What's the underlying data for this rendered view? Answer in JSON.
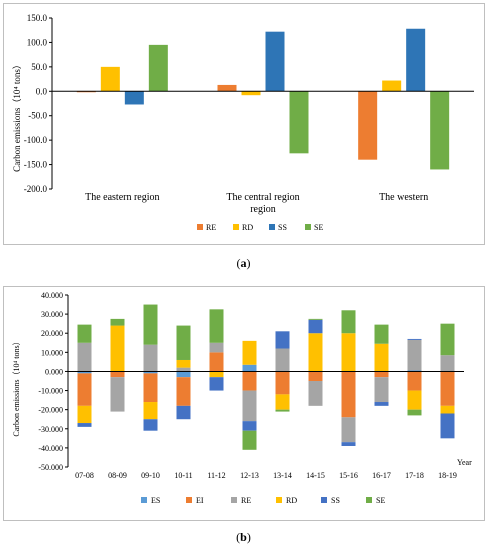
{
  "captions": {
    "a": "a",
    "b": "b"
  },
  "chart_data": [
    {
      "type": "bar",
      "ylabel": "Carbon emissions（10⁴ tons）",
      "ylim": [
        -200,
        150
      ],
      "yticks": [
        "-200.0",
        "-150.0",
        "-100.0",
        "-50.0",
        "0.0",
        "50.0",
        "100.0",
        "150.0"
      ],
      "ytick_values": [
        -200,
        -150,
        -100,
        -50,
        0,
        50,
        100,
        150
      ],
      "category_labels": [
        [
          "The eastern region"
        ],
        [
          "The central region",
          "region"
        ],
        [
          "The western"
        ]
      ],
      "categories": [
        "The eastern region",
        "The central region",
        "The western region"
      ],
      "series": [
        {
          "name": "RE",
          "color": "#ED7D31",
          "values": [
            -2,
            13,
            -140
          ]
        },
        {
          "name": "RD",
          "color": "#FFC000",
          "values": [
            50,
            -8,
            22
          ]
        },
        {
          "name": "SS",
          "color": "#2E75B6",
          "values": [
            -27,
            122,
            128
          ]
        },
        {
          "name": "SE",
          "color": "#70AD47",
          "values": [
            95,
            -127,
            -160
          ]
        }
      ],
      "grid": false,
      "legend_position": "bottom"
    },
    {
      "type": "bar",
      "stacked": true,
      "ylabel": "Carbon emissions（10⁴ tons）",
      "xlabel": "Year",
      "ylim": [
        -50,
        40
      ],
      "yticks": [
        "-50.000",
        "-40.000",
        "-30.000",
        "-20.000",
        "-10.000",
        "0.000",
        "10.000",
        "20.000",
        "30.000",
        "40.000"
      ],
      "ytick_values": [
        -50,
        -40,
        -30,
        -20,
        -10,
        0,
        10,
        20,
        30,
        40
      ],
      "categories": [
        "07-08",
        "08-09",
        "09-10",
        "10-11",
        "11-12",
        "12-13",
        "13-14",
        "14-15",
        "15-16",
        "16-17",
        "17-18",
        "18-19"
      ],
      "series": [
        {
          "name": "ES",
          "color": "#5B9BD5",
          "values": [
            -1,
            0,
            -1,
            -3,
            0,
            3.5,
            0,
            0,
            0,
            0,
            0.5,
            0
          ]
        },
        {
          "name": "EI",
          "color": "#ED7D31",
          "values": [
            -17,
            -3,
            -15,
            -15,
            10,
            -10,
            -12,
            -5,
            -24,
            -3,
            -10,
            -18
          ]
        },
        {
          "name": "RE",
          "color": "#A5A5A5",
          "values": [
            15,
            -18,
            14,
            2,
            5,
            -16,
            12,
            -13,
            -13,
            -13,
            16,
            8.5
          ]
        },
        {
          "name": "RD",
          "color": "#FFC000",
          "values": [
            -9,
            24,
            -9,
            4,
            -3,
            12.5,
            -8,
            20,
            20,
            14.5,
            -10,
            -4
          ]
        },
        {
          "name": "SS",
          "color": "#4472C4",
          "values": [
            -2,
            0,
            -6,
            -7,
            -7,
            -5,
            9,
            7,
            -2,
            -2,
            0.5,
            -13
          ]
        },
        {
          "name": "SE",
          "color": "#70AD47",
          "values": [
            9.5,
            3.5,
            21,
            18,
            17.5,
            -10,
            -1,
            0.5,
            12,
            10,
            -3,
            16.5
          ]
        }
      ],
      "grid": false,
      "legend_position": "bottom"
    }
  ]
}
